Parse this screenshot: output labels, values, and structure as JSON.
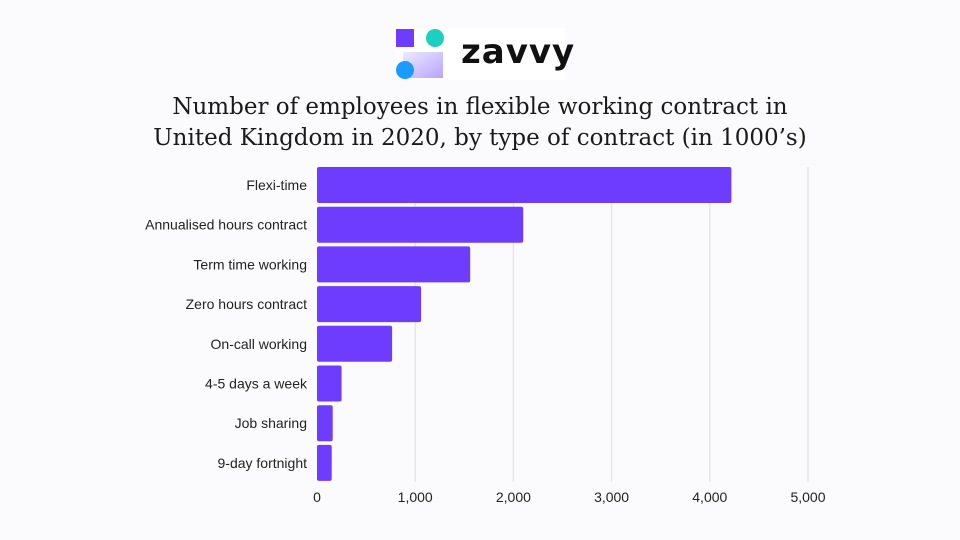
{
  "logo": {
    "text": "zavvy"
  },
  "chart_data": {
    "type": "bar",
    "orientation": "horizontal",
    "title_lines": [
      "Number of employees in flexible working contract in",
      "United Kingdom in 2020, by type of contract  (in 1000’s)"
    ],
    "categories": [
      "Flexi-time",
      "Annualised hours contract",
      "Term time working",
      "Zero hours contract",
      "On-call working",
      "4-5 days a week",
      "Job sharing",
      "9-day fortnight"
    ],
    "values": [
      4220,
      2100,
      1560,
      1060,
      765,
      250,
      160,
      150
    ],
    "xlim": [
      0,
      5000
    ],
    "xticks": [
      0,
      1000,
      2000,
      3000,
      4000,
      5000
    ],
    "xtick_labels": [
      "0",
      "1,000",
      "2,000",
      "3,000",
      "4,000",
      "5,000"
    ],
    "grid": "vertical",
    "bar_color": "#6e3cff",
    "grid_color": "#e6e6ea"
  }
}
